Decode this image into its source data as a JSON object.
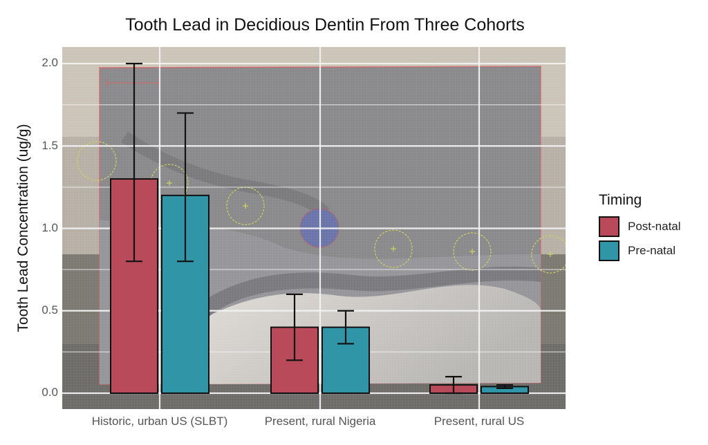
{
  "chart_data": {
    "type": "bar",
    "title": "Tooth Lead in Decidious Dentin From Three Cohorts",
    "xlabel": "",
    "ylabel": "Tooth Lead Concentration (ug/g)",
    "ylim": [
      -0.09,
      2.1
    ],
    "yticks": [
      "0.0",
      "0.5",
      "1.0",
      "1.5",
      "2.0"
    ],
    "categories": [
      "Historic, urban US (SLBT)",
      "Present, rural Nigeria",
      "Present, rural US"
    ],
    "series": [
      {
        "name": "Post-natal",
        "color": "#b94a5a",
        "values": [
          1.3,
          0.4,
          0.05
        ],
        "err_low": [
          0.8,
          0.2,
          0.0
        ],
        "err_high": [
          2.0,
          0.6,
          0.1
        ]
      },
      {
        "name": "Pre-natal",
        "color": "#3095a6",
        "values": [
          1.2,
          0.4,
          0.04
        ],
        "err_low": [
          0.8,
          0.3,
          0.03
        ],
        "err_high": [
          1.7,
          0.5,
          0.05
        ]
      }
    ],
    "legend": {
      "title": "Timing",
      "position": "right",
      "entries": [
        "Post-natal",
        "Pre-natal"
      ]
    },
    "grid": true,
    "background": "photograph of dentin tissue section with circular laser ablation markers"
  },
  "colors": {
    "post_natal": "#b94a5a",
    "pre_natal": "#3095a6",
    "gridline": "#f2f2f2",
    "bar_outline": "#111111"
  }
}
